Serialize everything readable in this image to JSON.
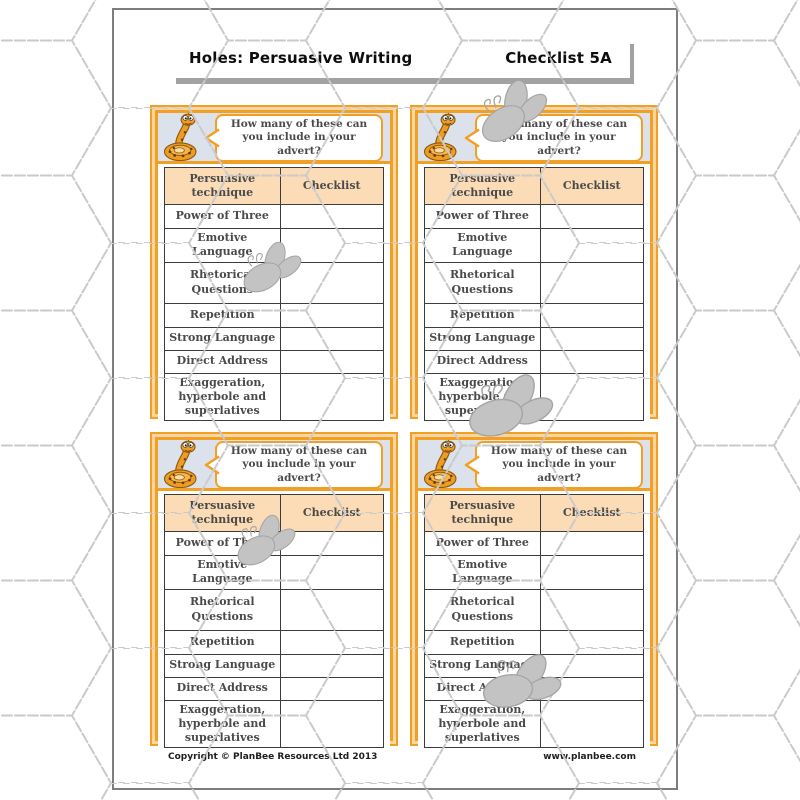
{
  "header": {
    "title": "Holes: Persuasive Writing",
    "subtitle": "Checklist 5A"
  },
  "card_count": 4,
  "card": {
    "prompt": "How many of these can you include in your advert?",
    "table": {
      "headers": [
        "Persuasive technique",
        "Checklist"
      ],
      "rows": [
        "Power of Three",
        "Emotive Language",
        "Rhetorical Questions",
        "Repetition",
        "Strong Language",
        "Direct Address",
        "Exaggeration, hyperbole and superlatives"
      ]
    }
  },
  "footer": {
    "copyright": "Copyright © PlanBee Resources Ltd 2013",
    "website": "www.planbee.com"
  },
  "icons": {
    "mascot": "snake-mascot-icon",
    "watermark": "bee-watermark-icon",
    "pattern": "hexagon-honeycomb-watermark"
  },
  "colors": {
    "accent_orange": "#F2A024",
    "peach_band": "#F8D6A4",
    "table_header_bg": "#FBDCB6",
    "card_top_bg": "#DBE2EB",
    "table_border": "#3C3C3C",
    "text_dark": "#4A4A4A",
    "bee_gray": "#C3C3C3",
    "hex_dash_gray": "#CACACA"
  }
}
